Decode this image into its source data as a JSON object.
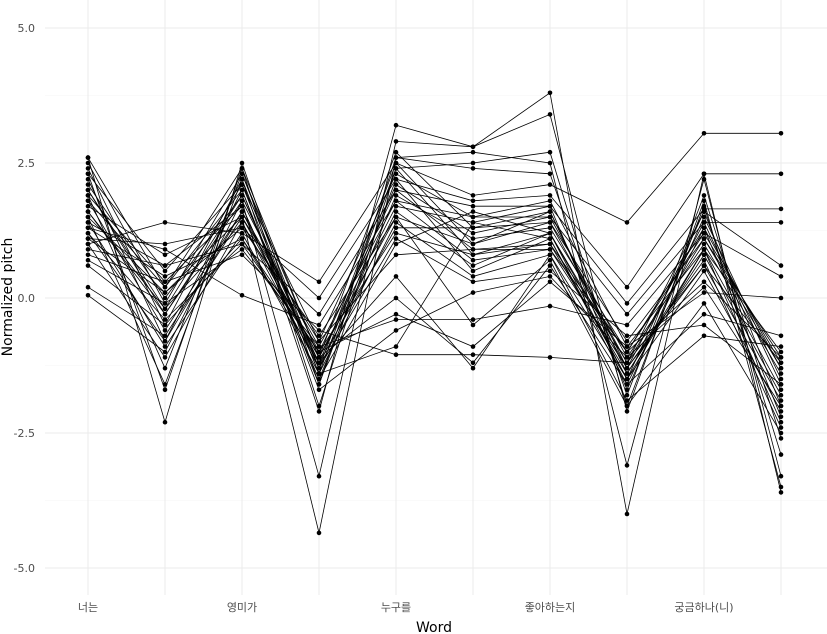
{
  "chart_data": {
    "type": "line",
    "xlabel": "Word",
    "ylabel": "Normalized pitch",
    "ylim": [
      -5.0,
      5.0
    ],
    "y_ticks": [
      "5.0",
      "2.5",
      "0.0",
      "-2.5",
      "-5.0"
    ],
    "categories": [
      "너는",
      "",
      "영미가",
      "",
      "누구를",
      "",
      "좋아하는지",
      "",
      "궁금하나(니)",
      ""
    ],
    "x_tick_labels": [
      "너는",
      "영미가",
      "누구를",
      "좋아하는지",
      "궁금하나(니)"
    ],
    "grid": true,
    "legend": "none",
    "series": [
      {
        "values": [
          2.6,
          0.2,
          2.4,
          -1.1,
          2.7,
          1.3,
          1.4,
          -1.2,
          1.1,
          -1.3
        ]
      },
      {
        "values": [
          2.5,
          -0.1,
          2.3,
          -1.3,
          2.5,
          1.0,
          1.6,
          -1.3,
          1.4,
          -1.6
        ]
      },
      {
        "values": [
          2.4,
          -0.5,
          2.2,
          -1.4,
          2.4,
          0.8,
          1.2,
          -1.5,
          1.6,
          -2.0
        ]
      },
      {
        "values": [
          2.3,
          0.5,
          2.1,
          -0.8,
          2.3,
          1.5,
          1.8,
          -0.9,
          0.9,
          -1.0
        ]
      },
      {
        "values": [
          2.2,
          -0.8,
          2.0,
          -1.6,
          2.2,
          0.5,
          1.1,
          -1.6,
          1.3,
          -2.2
        ]
      },
      {
        "values": [
          2.1,
          0.0,
          1.9,
          -1.2,
          2.1,
          1.2,
          1.5,
          -1.1,
          1.0,
          -1.4
        ]
      },
      {
        "values": [
          2.0,
          -0.3,
          1.8,
          -1.0,
          2.0,
          0.9,
          1.0,
          -1.4,
          0.8,
          -1.8
        ]
      },
      {
        "values": [
          1.9,
          0.3,
          1.7,
          -1.5,
          1.9,
          1.1,
          1.3,
          -1.0,
          1.2,
          -1.2
        ]
      },
      {
        "values": [
          1.8,
          -0.6,
          1.6,
          -0.9,
          1.8,
          0.7,
          0.9,
          -1.3,
          0.7,
          -2.4
        ]
      },
      {
        "values": [
          1.7,
          0.8,
          1.5,
          -1.1,
          1.7,
          1.4,
          1.7,
          -1.7,
          1.5,
          -1.5
        ]
      },
      {
        "values": [
          1.6,
          -0.2,
          1.4,
          -1.3,
          1.6,
          0.6,
          1.2,
          -1.2,
          0.6,
          -1.9
        ]
      },
      {
        "values": [
          1.5,
          0.1,
          1.3,
          -0.7,
          1.5,
          1.0,
          1.4,
          -0.8,
          1.1,
          -1.1
        ]
      },
      {
        "values": [
          1.4,
          -0.9,
          1.2,
          -1.4,
          1.4,
          0.4,
          0.8,
          -1.5,
          0.5,
          -2.1
        ]
      },
      {
        "values": [
          1.3,
          0.4,
          1.1,
          -1.2,
          1.3,
          1.3,
          1.6,
          -1.4,
          0.9,
          -1.7
        ]
      },
      {
        "values": [
          1.2,
          -0.4,
          1.0,
          -1.0,
          1.2,
          0.8,
          1.0,
          -1.0,
          1.3,
          -1.3
        ]
      },
      {
        "values": [
          2.6,
          -2.3,
          2.5,
          -1.6,
          2.6,
          2.4,
          2.3,
          -1.8,
          1.9,
          -2.6
        ]
      },
      {
        "values": [
          2.3,
          -1.7,
          2.4,
          -2.0,
          2.4,
          2.5,
          2.7,
          -2.0,
          1.7,
          -2.9
        ]
      },
      {
        "values": [
          1.5,
          -1.6,
          2.2,
          -2.1,
          3.2,
          2.8,
          3.4,
          -2.1,
          1.8,
          -3.5
        ]
      },
      {
        "values": [
          0.05,
          -1.0,
          1.8,
          -3.3,
          2.9,
          2.8,
          3.8,
          -4.0,
          2.3,
          -3.6
        ]
      },
      {
        "values": [
          0.2,
          -0.7,
          1.5,
          -4.35,
          2.6,
          2.7,
          2.5,
          -3.1,
          2.2,
          -3.3
        ]
      },
      {
        "values": [
          1.0,
          1.4,
          1.2,
          0.3,
          2.5,
          1.9,
          2.1,
          1.4,
          3.05,
          3.05
        ]
      },
      {
        "values": [
          1.1,
          1.0,
          1.3,
          0.0,
          2.2,
          1.8,
          1.9,
          0.2,
          2.3,
          2.3
        ]
      },
      {
        "values": [
          0.9,
          0.6,
          1.0,
          -0.3,
          2.0,
          1.7,
          1.7,
          -0.1,
          1.65,
          1.65
        ]
      },
      {
        "values": [
          1.3,
          0.9,
          0.05,
          -0.5,
          1.8,
          1.5,
          1.5,
          -0.3,
          1.4,
          1.4
        ]
      },
      {
        "values": [
          0.8,
          0.3,
          0.8,
          -0.6,
          -1.05,
          -1.05,
          -1.1,
          -1.2,
          1.6,
          0.6
        ]
      },
      {
        "values": [
          0.7,
          -0.1,
          0.9,
          -0.9,
          -0.4,
          -0.4,
          -0.15,
          -0.5,
          1.2,
          0.4
        ]
      },
      {
        "values": [
          0.6,
          -0.5,
          1.1,
          -1.0,
          -0.3,
          -0.9,
          0.3,
          -0.9,
          0.1,
          0.0
        ]
      },
      {
        "values": [
          1.0,
          -1.1,
          1.4,
          -1.1,
          0.0,
          -1.2,
          0.6,
          -1.6,
          -0.3,
          -0.7
        ]
      },
      {
        "values": [
          1.2,
          -0.8,
          1.6,
          -1.2,
          0.4,
          -1.3,
          0.8,
          -1.9,
          -0.7,
          -0.9
        ]
      },
      {
        "values": [
          1.1,
          0.1,
          1.5,
          -0.8,
          0.8,
          0.9,
          0.9,
          -1.0,
          0.3,
          -1.1
        ]
      },
      {
        "values": [
          1.4,
          0.6,
          1.7,
          -1.5,
          1.0,
          1.6,
          1.2,
          -1.3,
          0.6,
          -1.2
        ]
      },
      {
        "values": [
          1.6,
          -0.3,
          1.9,
          -1.3,
          1.1,
          0.3,
          0.5,
          -0.7,
          -0.5,
          -1.6
        ]
      },
      {
        "values": [
          1.8,
          0.2,
          2.0,
          -1.7,
          -0.6,
          0.1,
          0.4,
          -1.1,
          0.2,
          -2.0
        ]
      },
      {
        "values": [
          2.0,
          -0.2,
          2.1,
          -1.4,
          -0.9,
          1.4,
          1.1,
          -1.5,
          0.9,
          -2.3
        ]
      },
      {
        "values": [
          1.9,
          -1.3,
          2.3,
          -1.1,
          1.5,
          -0.5,
          0.7,
          -2.0,
          -0.1,
          -2.5
        ]
      }
    ]
  }
}
